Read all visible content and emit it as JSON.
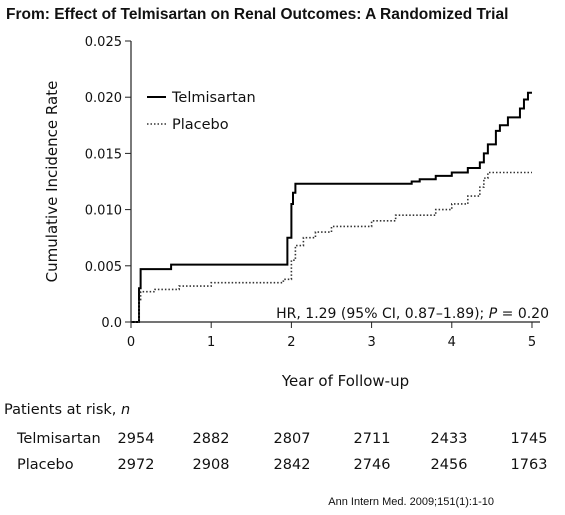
{
  "header": {
    "title": "From: Effect of Telmisartan on Renal Outcomes: A Randomized Trial"
  },
  "citation": "Ann Intern Med. 2009;151(1):1-10",
  "chart_data": {
    "type": "line",
    "xlabel": "Year of Follow-up",
    "ylabel": "Cumulative Incidence Rate",
    "xlim": [
      0,
      5.1
    ],
    "ylim": [
      0,
      0.025
    ],
    "xticks": [
      "0",
      "1",
      "2",
      "3",
      "4",
      "5"
    ],
    "yticks": [
      "0.0",
      "0.005",
      "0.010",
      "0.015",
      "0.020",
      "0.025"
    ],
    "grid": false,
    "legend_position": "top-left",
    "annotation": "HR, 1.29 (95% CI, 0.87–1.89); P = 0.20",
    "series": [
      {
        "name": "Telmisartan",
        "style": "solid",
        "color": "#000000",
        "x": [
          0,
          0.08,
          0.1,
          0.12,
          0.5,
          1.9,
          1.95,
          2.0,
          2.02,
          2.05,
          2.1,
          3.5,
          3.6,
          3.8,
          4.0,
          4.2,
          4.35,
          4.4,
          4.45,
          4.55,
          4.6,
          4.7,
          4.85,
          4.9,
          4.95,
          5.0
        ],
        "y": [
          0,
          0,
          0.003,
          0.0047,
          0.0051,
          0.0051,
          0.0075,
          0.0105,
          0.0115,
          0.0123,
          0.0123,
          0.0125,
          0.0127,
          0.013,
          0.0133,
          0.0137,
          0.0142,
          0.015,
          0.0158,
          0.017,
          0.0175,
          0.0182,
          0.019,
          0.0198,
          0.0204,
          0.0204
        ]
      },
      {
        "name": "Placebo",
        "style": "dotted",
        "color": "#333333",
        "x": [
          0,
          0.08,
          0.1,
          0.12,
          0.3,
          0.6,
          1.0,
          1.9,
          2.0,
          2.05,
          2.15,
          2.3,
          2.5,
          3.0,
          3.3,
          3.8,
          4.0,
          4.2,
          4.35,
          4.4,
          4.45,
          5.0
        ],
        "y": [
          0,
          0,
          0.002,
          0.0027,
          0.0029,
          0.0032,
          0.0035,
          0.0038,
          0.0055,
          0.0068,
          0.0075,
          0.008,
          0.0085,
          0.009,
          0.0095,
          0.01,
          0.0105,
          0.0112,
          0.012,
          0.0128,
          0.0133,
          0.0133
        ]
      }
    ]
  },
  "risk_table": {
    "heading": "Patients at risk,",
    "heading_var": "n",
    "rows": [
      {
        "label": "Telmisartan",
        "values": [
          "2954",
          "2882",
          "2807",
          "2711",
          "2433",
          "1745"
        ]
      },
      {
        "label": "Placebo",
        "values": [
          "2972",
          "2908",
          "2842",
          "2746",
          "2456",
          "1763"
        ]
      }
    ]
  }
}
